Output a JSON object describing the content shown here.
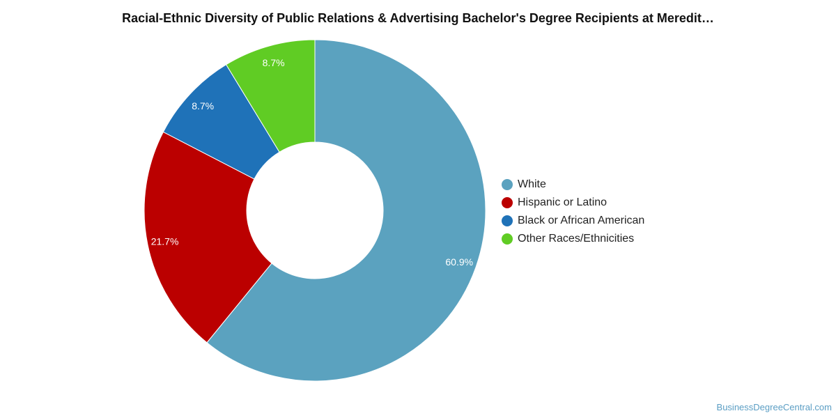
{
  "title": "Racial-Ethnic Diversity of Public Relations & Advertising Bachelor's Degree Recipients at Meredit…",
  "watermark": "BusinessDegreeCentral.com",
  "chart_data": {
    "type": "pie",
    "donut": true,
    "title": "Racial-Ethnic Diversity of Public Relations & Advertising Bachelor's Degree Recipients at Meredit…",
    "legend_position": "right",
    "series": [
      {
        "name": "White",
        "value": 60.9,
        "label": "60.9%",
        "color": "#5ba2bf"
      },
      {
        "name": "Hispanic or Latino",
        "value": 21.7,
        "label": "21.7%",
        "color": "#bb0000"
      },
      {
        "name": "Black or African American",
        "value": 8.7,
        "label": "8.7%",
        "color": "#1f72b8"
      },
      {
        "name": "Other Races/Ethnicities",
        "value": 8.7,
        "label": "8.7%",
        "color": "#60cc24"
      }
    ]
  }
}
